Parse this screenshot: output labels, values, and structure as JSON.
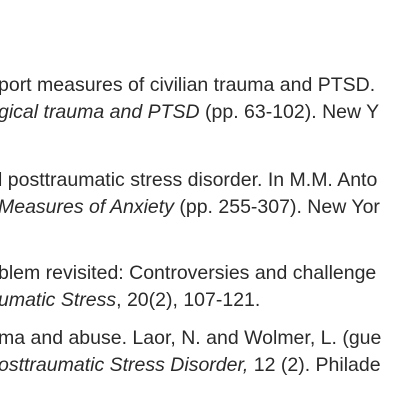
{
  "references": [
    {
      "line1": "port measures of civilian trauma and PTSD.",
      "line2_italic": "gical trauma and PTSD",
      "line2_rest": " (pp. 63-102). New Y"
    },
    {
      "line1": "l posttraumatic stress disorder. In M.M. Anto",
      "line2_italic": "Measures of Anxiety",
      "line2_rest": " (pp. 255-307). New Yor"
    },
    {
      "line1": "blem revisited: Controversies and challenge",
      "line2_italic": "umatic Stress",
      "line2_rest": ", 20(2), 107-121."
    },
    {
      "line1": "ma and abuse. Laor, N. and Wolmer, L. (gue",
      "line2_italic": "osttraumatic Stress Disorder,",
      "line2_rest": " 12 (2). Philade"
    }
  ]
}
